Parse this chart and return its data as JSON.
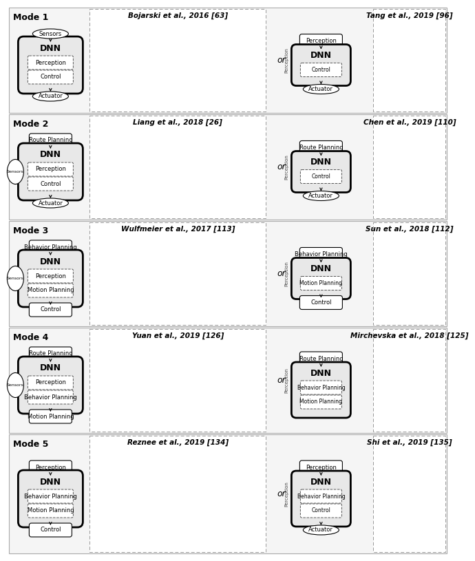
{
  "fig_width": 6.4,
  "fig_height": 7.95,
  "row_configs": [
    {
      "label": "Mode 1",
      "left_top": "Sensors",
      "left_top_oval": true,
      "left_dnn": [
        "Perception",
        "Control"
      ],
      "left_bottom": "Actuator",
      "left_bottom_oval": true,
      "sensors_oval": true,
      "left_title": "Bojarski et al., 2016 [63]",
      "or_text": "or",
      "right_top": "Perception",
      "right_top_oval": false,
      "right_dnn": [
        "Control"
      ],
      "right_bottom": "Actuator",
      "right_bottom_oval": true,
      "right_title": "Tang et al., 2019 [96]",
      "left_side_label": null
    },
    {
      "label": "Mode 2",
      "left_top": "Route Planning",
      "left_top_oval": false,
      "left_dnn": [
        "Perception",
        "Control"
      ],
      "left_bottom": "Actuator",
      "left_bottom_oval": true,
      "sensors_oval": true,
      "left_title": "Liang et al., 2018 [26]",
      "or_text": "or",
      "right_top": "Route Planning",
      "right_top_oval": false,
      "right_dnn": [
        "Control"
      ],
      "right_bottom": "Actuator",
      "right_bottom_oval": true,
      "right_title": "Chen et al., 2019 [110]",
      "left_side_label": "Sensors"
    },
    {
      "label": "Mode 3",
      "left_top": "Behavior Planning",
      "left_top_oval": false,
      "left_dnn": [
        "Perception",
        "Motion Planning"
      ],
      "left_bottom": "Control",
      "left_bottom_oval": false,
      "sensors_oval": true,
      "left_title": "Wulfmeier et al., 2017 [113]",
      "or_text": "or",
      "right_top": "Behavior Planning",
      "right_top_oval": false,
      "right_dnn": [
        "Motion Planning"
      ],
      "right_bottom": "Control",
      "right_bottom_oval": false,
      "right_title": "Sun et al., 2018 [112]",
      "left_side_label": "Sensors"
    },
    {
      "label": "Mode 4",
      "left_top": "Route Planning",
      "left_top_oval": false,
      "left_dnn": [
        "Perception",
        "Behavior Planning"
      ],
      "left_bottom": "Motion Planning",
      "left_bottom_oval": false,
      "sensors_oval": true,
      "left_title": "Yuan et al., 2019 [126]",
      "or_text": "or",
      "right_top": "Route Planning",
      "right_top_oval": false,
      "right_dnn": [
        "Behavior Planning",
        "Motion Planning"
      ],
      "right_bottom": null,
      "right_bottom_oval": false,
      "right_title": "Mirchevska et al., 2018 [125]",
      "left_side_label": "Sensors"
    },
    {
      "label": "Mode 5",
      "left_top": "Perception",
      "left_top_oval": false,
      "left_dnn": [
        "Behavior Planning",
        "Motion Planning"
      ],
      "left_bottom": "Control",
      "left_bottom_oval": false,
      "sensors_oval": false,
      "left_title": "Reznee et al., 2019 [134]",
      "or_text": "or",
      "right_top": "Perception",
      "right_top_oval": false,
      "right_dnn": [
        "Behavior Planning",
        "Control"
      ],
      "right_bottom": "Actuator",
      "right_bottom_oval": true,
      "right_title": "Shi et al., 2019 [135]",
      "left_side_label": null
    }
  ]
}
